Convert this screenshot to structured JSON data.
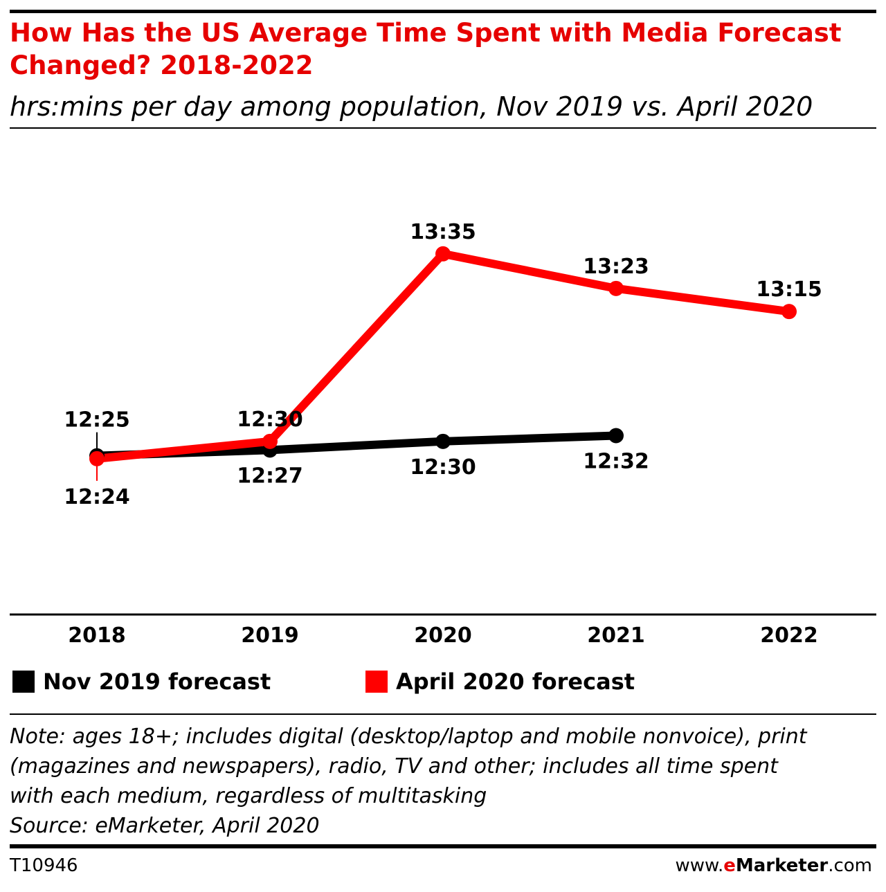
{
  "title_lines": [
    "How Has the US Average Time Spent with Media Forecast",
    "Changed? 2018-2022"
  ],
  "subtitle": "hrs:mins per day among population, Nov 2019 vs. April 2020",
  "chart_data": {
    "type": "line",
    "title": "How Has the US Average Time Spent with Media Forecast Changed? 2018-2022",
    "subtitle": "hrs:mins per day among population, Nov 2019 vs. April 2020",
    "x": [
      "2018",
      "2019",
      "2020",
      "2021",
      "2022"
    ],
    "ylim": [
      11.5,
      14.25
    ],
    "grid": false,
    "legend_position": "bottom-left",
    "series": [
      {
        "name": "Nov 2019 forecast",
        "color": "#000000",
        "values": [
          12.4167,
          12.45,
          12.5,
          12.5333,
          null
        ],
        "labels": [
          "12:25",
          "12:27",
          "12:30",
          "12:32",
          null
        ]
      },
      {
        "name": "April 2020 forecast",
        "color": "#ff0000",
        "values": [
          12.4,
          12.5,
          13.5833,
          13.3833,
          13.25
        ],
        "labels": [
          "12:24",
          "12:30",
          "13:35",
          "13:23",
          "13:15"
        ]
      }
    ]
  },
  "note_lines": [
    "Note: ages 18+; includes digital (desktop/laptop and mobile nonvoice), print",
    "(magazines and newspapers), radio, TV and other; includes all time spent",
    "with each medium, regardless of multitasking",
    "Source: eMarketer, April 2020"
  ],
  "footer": {
    "chart_id": "T10946",
    "site_prefix": "www.",
    "site_brand_e": "e",
    "site_brand_rest": "Marketer",
    "site_suffix": ".com"
  }
}
